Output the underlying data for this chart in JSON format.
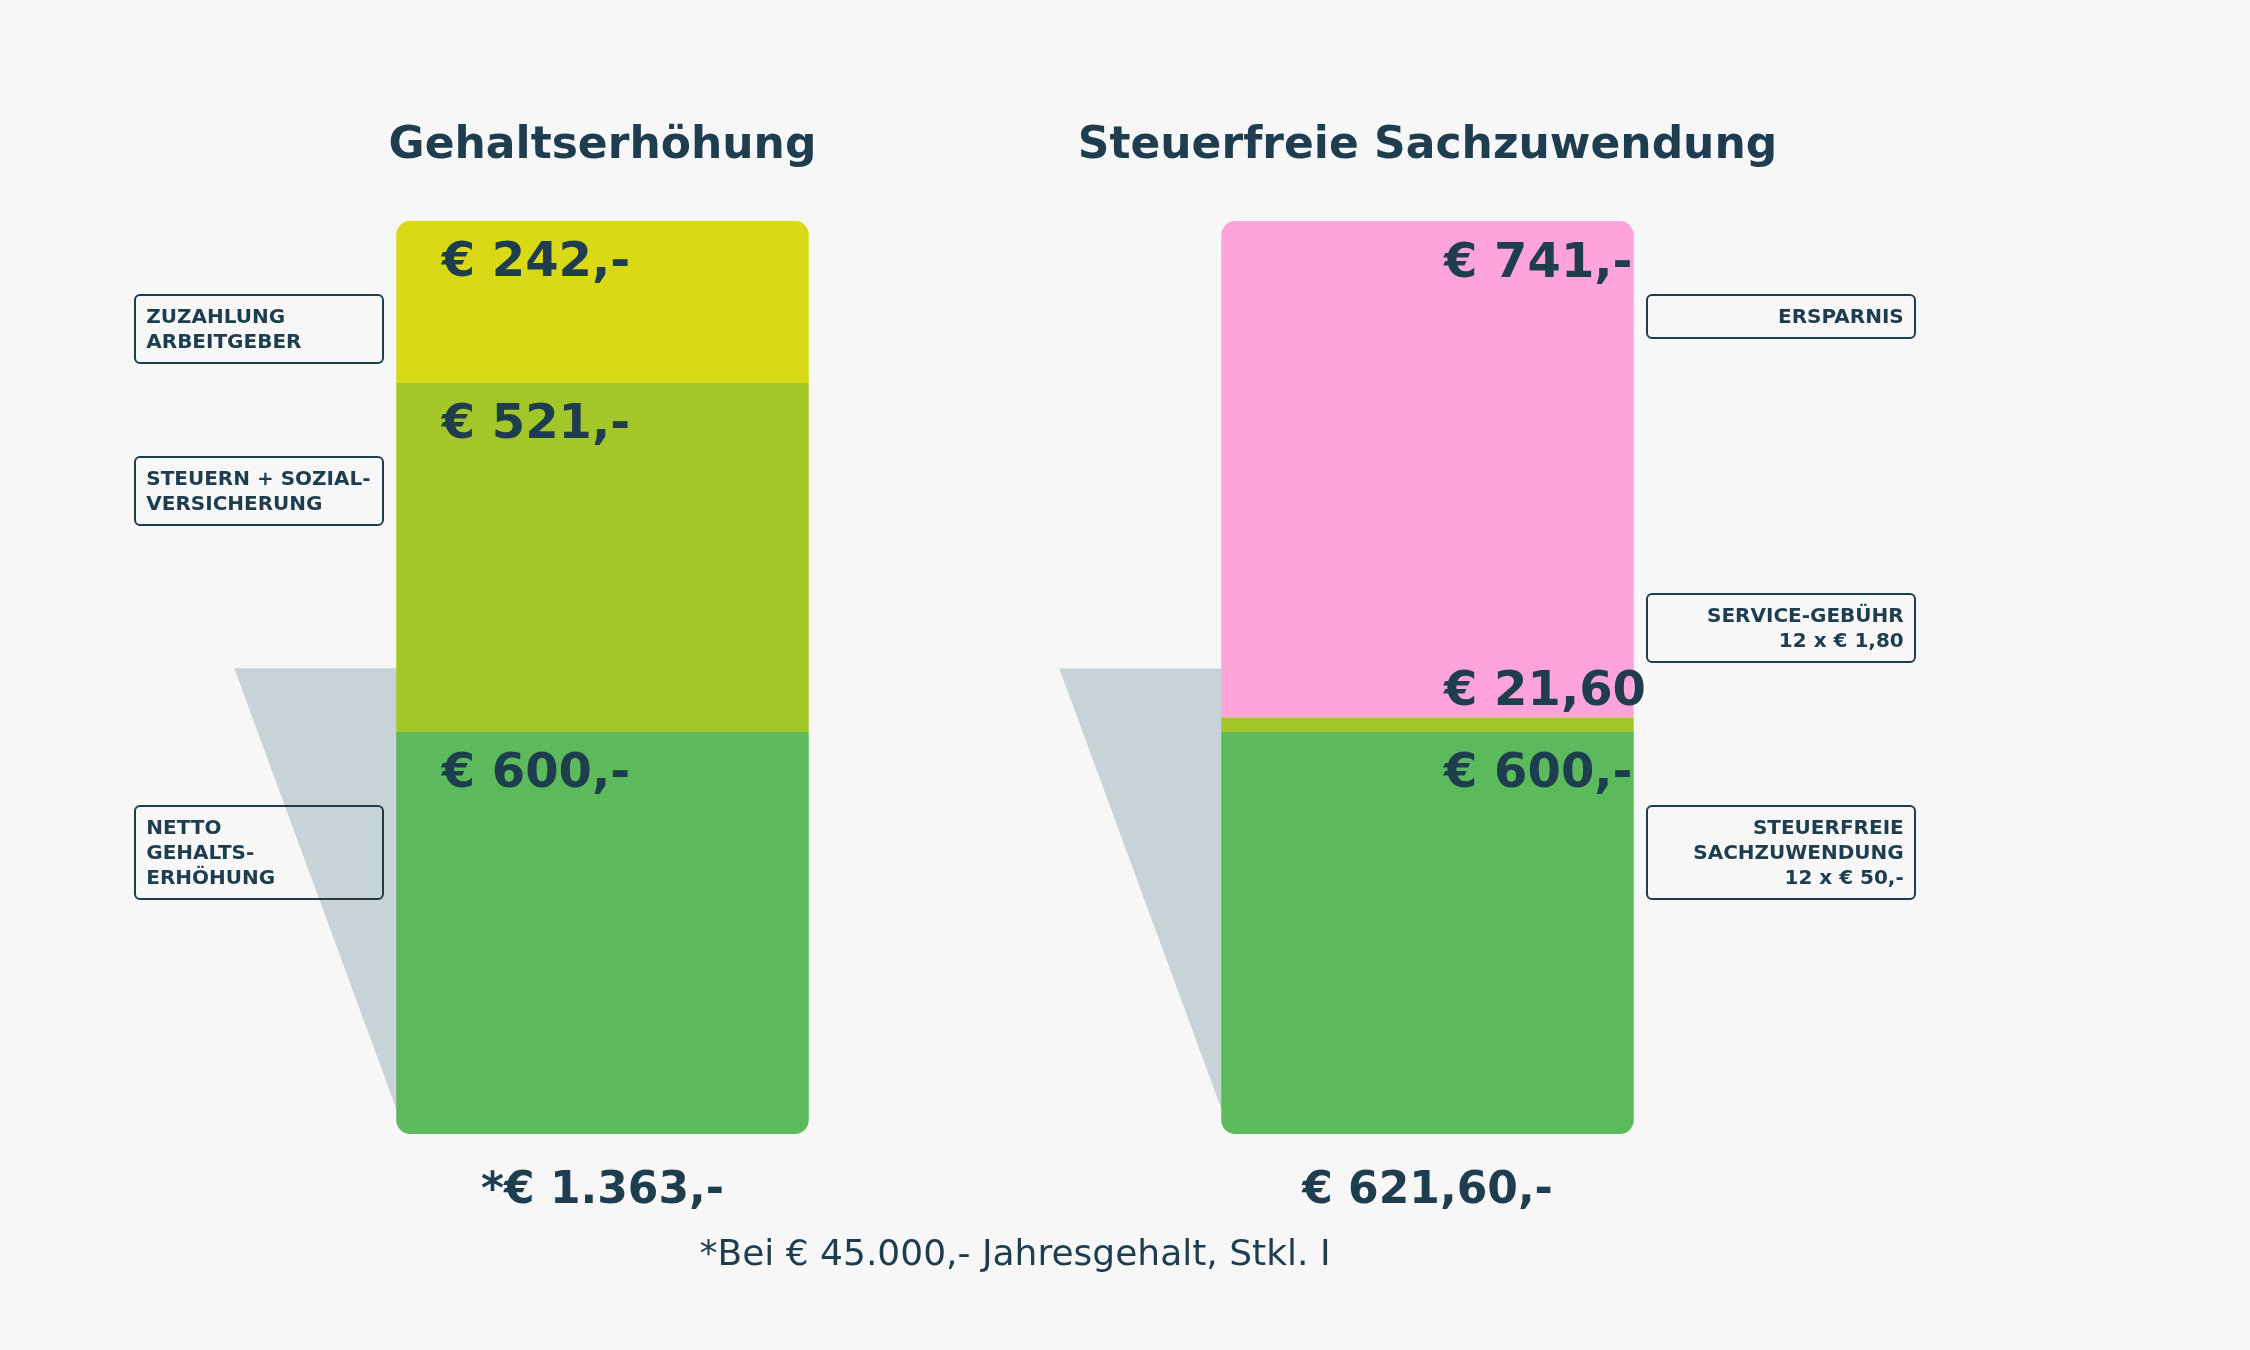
{
  "chart_data": {
    "type": "bar",
    "stacked": true,
    "categories": [
      "Gehaltserhöhung",
      "Steuerfreie Sachzuwendung"
    ],
    "series": [
      {
        "colors": [
          "#5cba5c",
          "#5cba5c"
        ],
        "values": [
          600,
          600
        ],
        "value_labels": [
          "€ 600,-",
          "€ 600,-"
        ]
      },
      {
        "colors": [
          "#a3c628",
          "#a3c628"
        ],
        "values": [
          521,
          21.6
        ],
        "value_labels": [
          "€ 521,-",
          "€ 21,60"
        ]
      },
      {
        "colors": [
          "#d9d916",
          "#ffa3db"
        ],
        "values": [
          242,
          741
        ],
        "value_labels": [
          "€ 242,-",
          "€ 741,-"
        ]
      }
    ],
    "ylim": [
      0,
      1363
    ],
    "legend": false,
    "annotations": [
      "ZUZAHLUNG\nARBEITGEBER",
      "STEUERN + SOZIAL-\nVERSICHERUNG",
      "NETTO\nGEHALTS-\nERHÖHUNG",
      "ERSPARNIS",
      "SERVICE-GEBÜHR\n12 x € 1,80",
      "STEUERFREIE\nSACHZUWENDUNG\n12 x € 50,-",
      "*€ 1.363,-",
      "€ 621,60,-",
      "*Bei € 45.000,- Jahresgehalt, Stkl. I"
    ]
  }
}
